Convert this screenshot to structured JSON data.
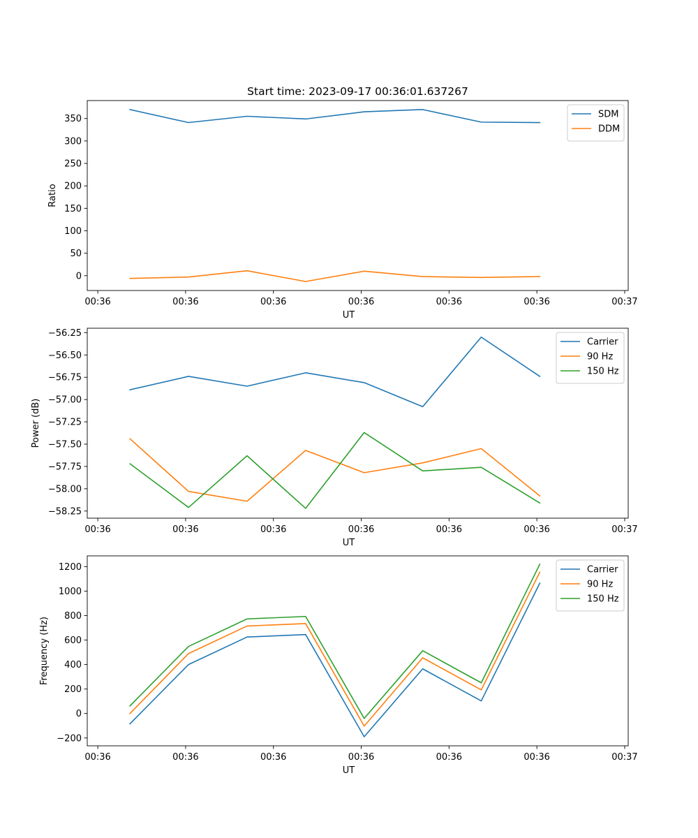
{
  "figure_title": "Start time: 2023-09-17 00:36:01.637267",
  "colors": {
    "blue": "#1f77b4",
    "orange": "#ff7f0e",
    "green": "#2ca02c"
  },
  "chart_data": [
    {
      "type": "line",
      "title": "Start time: 2023-09-17 00:36:01.637267",
      "xlabel": "UT",
      "ylabel": "Ratio",
      "x": [
        1,
        2,
        3,
        4,
        5,
        6,
        7,
        8
      ],
      "xlim": [
        0.27,
        9.51
      ],
      "x_ticks": [
        0.45,
        1.95,
        3.45,
        4.95,
        6.45,
        7.95,
        9.45
      ],
      "x_tick_labels": [
        "00:36",
        "00:36",
        "00:36",
        "00:36",
        "00:36",
        "00:36",
        "00:37"
      ],
      "ylim": [
        -33,
        390
      ],
      "y_ticks": [
        0,
        50,
        100,
        150,
        200,
        250,
        300,
        350
      ],
      "y_tick_labels": [
        "0",
        "50",
        "100",
        "150",
        "200",
        "250",
        "300",
        "350"
      ],
      "legend_position": "top-right",
      "series": [
        {
          "name": "SDM",
          "color": "#1f77b4",
          "values": [
            370,
            341,
            355,
            349,
            365,
            370,
            342,
            341
          ]
        },
        {
          "name": "DDM",
          "color": "#ff7f0e",
          "values": [
            -6,
            -3,
            11,
            -13,
            10,
            -2,
            -4,
            -2
          ]
        }
      ]
    },
    {
      "type": "line",
      "title": "",
      "xlabel": "UT",
      "ylabel": "Power (dB)",
      "x": [
        1,
        2,
        3,
        4,
        5,
        6,
        7,
        8
      ],
      "xlim": [
        0.27,
        9.51
      ],
      "x_ticks": [
        0.45,
        1.95,
        3.45,
        4.95,
        6.45,
        7.95,
        9.45
      ],
      "x_tick_labels": [
        "00:36",
        "00:36",
        "00:36",
        "00:36",
        "00:36",
        "00:36",
        "00:37"
      ],
      "ylim": [
        -58.33,
        -56.2
      ],
      "y_ticks": [
        -56.25,
        -56.5,
        -56.75,
        -57.0,
        -57.25,
        -57.5,
        -57.75,
        -58.0,
        -58.25
      ],
      "y_tick_labels": [
        "−56.25",
        "−56.50",
        "−56.75",
        "−57.00",
        "−57.25",
        "−57.50",
        "−57.75",
        "−58.00",
        "−58.25"
      ],
      "legend_position": "top-right",
      "series": [
        {
          "name": "Carrier",
          "color": "#1f77b4",
          "values": [
            -56.89,
            -56.74,
            -56.85,
            -56.7,
            -56.81,
            -57.08,
            -56.3,
            -56.74
          ]
        },
        {
          "name": "90 Hz",
          "color": "#ff7f0e",
          "values": [
            -57.44,
            -58.03,
            -58.14,
            -57.57,
            -57.82,
            -57.71,
            -57.55,
            -58.08
          ]
        },
        {
          "name": "150 Hz",
          "color": "#2ca02c",
          "values": [
            -57.72,
            -58.21,
            -57.63,
            -58.22,
            -57.37,
            -57.8,
            -57.76,
            -58.16
          ]
        }
      ]
    },
    {
      "type": "line",
      "title": "",
      "xlabel": "UT",
      "ylabel": "Frequency (Hz)",
      "x": [
        1,
        2,
        3,
        4,
        5,
        6,
        7,
        8
      ],
      "xlim": [
        0.27,
        9.51
      ],
      "x_ticks": [
        0.45,
        1.95,
        3.45,
        4.95,
        6.45,
        7.95,
        9.45
      ],
      "x_tick_labels": [
        "00:36",
        "00:36",
        "00:36",
        "00:36",
        "00:36",
        "00:36",
        "00:37"
      ],
      "ylim": [
        -264,
        1288
      ],
      "y_ticks": [
        -200,
        0,
        200,
        400,
        600,
        800,
        1000,
        1200
      ],
      "y_tick_labels": [
        "−200",
        "0",
        "200",
        "400",
        "600",
        "800",
        "1000",
        "1200"
      ],
      "legend_position": "top-right",
      "series": [
        {
          "name": "Carrier",
          "color": "#1f77b4",
          "values": [
            -84,
            400,
            625,
            645,
            -190,
            365,
            103,
            1065
          ]
        },
        {
          "name": "90 Hz",
          "color": "#ff7f0e",
          "values": [
            0,
            490,
            715,
            735,
            -103,
            455,
            193,
            1155
          ]
        },
        {
          "name": "150 Hz",
          "color": "#2ca02c",
          "values": [
            62,
            548,
            773,
            793,
            -40,
            513,
            251,
            1220
          ]
        }
      ]
    }
  ]
}
